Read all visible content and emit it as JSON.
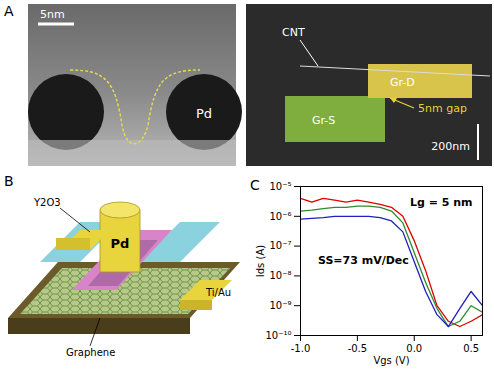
{
  "panels": {
    "A": {
      "label": "A",
      "tem": {
        "scale_bar": "5nm",
        "electrode": "Pd"
      },
      "sem": {
        "cnt": "CNT",
        "drain": "Gr-D",
        "gap": "5nm gap",
        "source": "Gr-S",
        "scale_bar": "200nm"
      }
    },
    "B": {
      "label": "B",
      "dielectric": "Y2O3",
      "gate": "Pd",
      "contact": "Ti/Au",
      "channel": "Graphene"
    },
    "C": {
      "label": "C"
    }
  },
  "chart_data": {
    "type": "line",
    "x_label": "Vgs (V)",
    "y_label": "Ids (A)",
    "annotations": [
      "Lg = 5 nm",
      "SS=73 mV/Dec"
    ],
    "log": "y",
    "xlim": [
      -1.0,
      0.6
    ],
    "xticks": [
      {
        "value": -1.0,
        "label": "-1.0"
      },
      {
        "value": -0.5,
        "label": "-0.5"
      },
      {
        "value": 0,
        "label": "0.0"
      },
      0.5
    ],
    "ylim": [
      1e-10,
      1e-05
    ],
    "yticks": [
      {
        "value": 1e-10,
        "label": "10⁻¹⁰"
      },
      {
        "value": 1e-09,
        "label": "10⁻⁹"
      },
      {
        "value": 1e-08,
        "label": "10⁻⁸"
      },
      {
        "value": 1e-07,
        "label": "10⁻⁷"
      },
      {
        "value": 1e-06,
        "label": "10⁻⁶"
      },
      {
        "value": 1e-05,
        "label": "10⁻⁵"
      }
    ],
    "x": [
      -1.0,
      -0.9,
      -0.8,
      -0.7,
      -0.6,
      -0.5,
      -0.4,
      -0.3,
      -0.2,
      -0.1,
      0.0,
      0.1,
      0.2,
      0.3,
      0.4,
      0.5,
      0.6
    ],
    "series": [
      {
        "color": "#e00000",
        "values": [
          4e-06,
          3e-06,
          4e-06,
          3.5e-06,
          3e-06,
          3.5e-06,
          3e-06,
          2.5e-06,
          2e-06,
          1e-06,
          1.5e-07,
          1.5e-08,
          1e-09,
          3e-10,
          2e-10,
          3e-10,
          5e-10
        ]
      },
      {
        "color": "#2e8b2e",
        "values": [
          1.5e-06,
          1.6e-06,
          1.8e-06,
          2e-06,
          2e-06,
          2.2e-06,
          2.2e-06,
          2e-06,
          1.5e-06,
          6e-07,
          6e-08,
          6e-09,
          8e-10,
          2e-10,
          3e-10,
          1e-09,
          6e-10
        ]
      },
      {
        "color": "#1f1fbf",
        "values": [
          8e-07,
          8.5e-07,
          9e-07,
          1e-06,
          1e-06,
          1e-06,
          1e-06,
          9e-07,
          7e-07,
          3e-07,
          3e-08,
          3e-09,
          5e-10,
          2e-10,
          8e-10,
          3e-09,
          1e-09
        ]
      }
    ]
  }
}
